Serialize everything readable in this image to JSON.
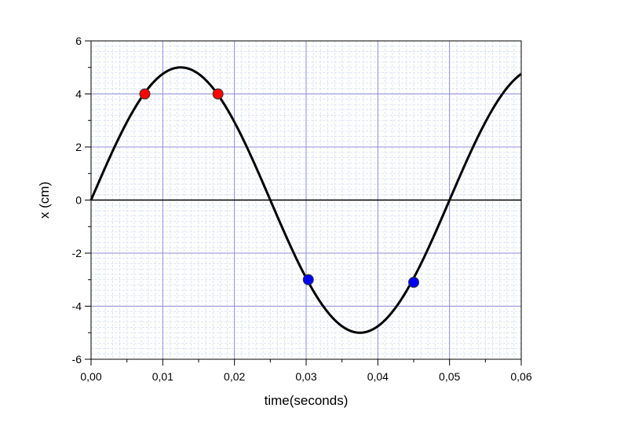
{
  "chart_data": {
    "type": "line",
    "title": "",
    "xlabel": "time(seconds)",
    "ylabel": "x (cm)",
    "xlim": [
      0.0,
      0.06
    ],
    "ylim": [
      -6,
      6
    ],
    "x_ticks": [
      "0,00",
      "0,01",
      "0,02",
      "0,03",
      "0,04",
      "0,05",
      "0,06"
    ],
    "y_ticks": [
      "-6",
      "-4",
      "-2",
      "0",
      "2",
      "4",
      "6"
    ],
    "grid": true,
    "series": [
      {
        "type": "line",
        "function": "x(t) = 5 sin(2π·20·t)",
        "amplitude": 5,
        "frequency_hz": 20,
        "t_range": [
          0.0,
          0.06
        ],
        "color": "#000000"
      }
    ],
    "points": [
      {
        "x": 0.0075,
        "y": 4.0,
        "color": "#ff0000"
      },
      {
        "x": 0.0177,
        "y": 4.0,
        "color": "#ff0000"
      },
      {
        "x": 0.0303,
        "y": -3.0,
        "color": "#0000ff"
      },
      {
        "x": 0.045,
        "y": -3.1,
        "color": "#0000ff"
      }
    ],
    "colors": {
      "major_grid": "#8c8cd9",
      "minor_grid": "#d9e4f2",
      "zero_line": "#000000"
    }
  }
}
